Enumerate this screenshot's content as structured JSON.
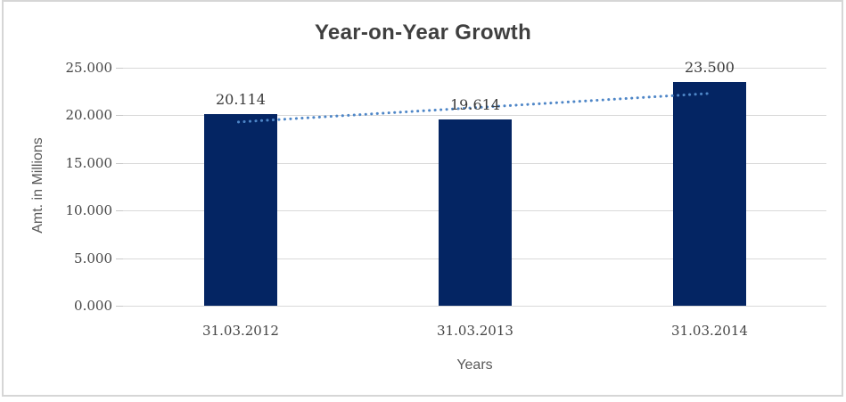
{
  "chart": {
    "title": "Year-on-Year Growth",
    "y_axis_title": "Amt. in Millions",
    "x_axis_title": "Years"
  },
  "chart_data": {
    "type": "bar",
    "title": "Year-on-Year Growth",
    "xlabel": "Years",
    "ylabel": "Amt. in Millions",
    "categories": [
      "31.03.2012",
      "31.03.2013",
      "31.03.2014"
    ],
    "values": [
      20.114,
      19.614,
      23.5
    ],
    "value_labels": [
      "20.114",
      "19.614",
      "23.500"
    ],
    "ylim": [
      0,
      25
    ],
    "ytick_values": [
      0,
      5,
      10,
      15,
      20,
      25
    ],
    "ytick_labels": [
      "0.000",
      "5.000",
      "10.000",
      "15.000",
      "20.000",
      "25.000"
    ],
    "grid": "horizontal",
    "legend": "none",
    "trendline": {
      "type": "linear",
      "style": "dotted",
      "start_value": 19.3,
      "end_value": 22.3
    }
  },
  "colors": {
    "bar": "#042563",
    "trendline": "#4E86C7",
    "gridline": "#D9D9D9",
    "tick": "#C9C9C9",
    "border": "#D6D6D6",
    "title_text": "#3F3F3F",
    "axis_title_text": "#595959",
    "label_text": "#3A3A3A",
    "background": "#FFFFFF"
  }
}
